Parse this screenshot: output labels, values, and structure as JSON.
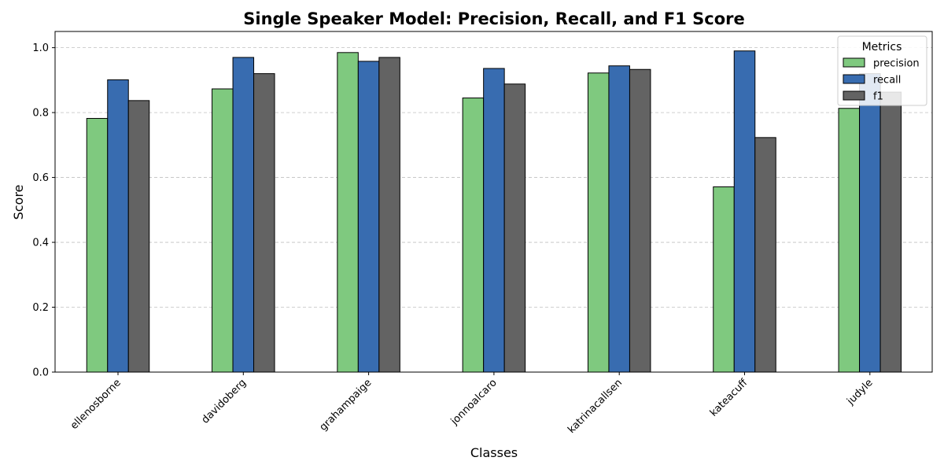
{
  "chart_data": {
    "type": "bar",
    "title": "Single Speaker Model: Precision, Recall, and F1 Score",
    "xlabel": "Classes",
    "ylabel": "Score",
    "ylim": [
      0,
      1.05
    ],
    "yticks": [
      "0.0",
      "0.2",
      "0.4",
      "0.6",
      "0.8",
      "1.0"
    ],
    "categories": [
      "ellenosborne",
      "davidoberg",
      "grahampaige",
      "jonnoalcaro",
      "katrinacallsen",
      "kateacuff",
      "judyle"
    ],
    "series": [
      {
        "name": "precision",
        "color": "#7fc97f",
        "values": [
          0.782,
          0.873,
          0.985,
          0.845,
          0.922,
          0.571,
          0.813
        ]
      },
      {
        "name": "recall",
        "color": "#386cb0",
        "values": [
          0.901,
          0.97,
          0.958,
          0.936,
          0.944,
          0.99,
          0.92
        ]
      },
      {
        "name": "f1",
        "color": "#636363",
        "values": [
          0.837,
          0.92,
          0.97,
          0.888,
          0.933,
          0.723,
          0.863
        ]
      }
    ],
    "grid": "y-dashed",
    "legend": {
      "title": "Metrics",
      "placement": "top-right"
    }
  }
}
